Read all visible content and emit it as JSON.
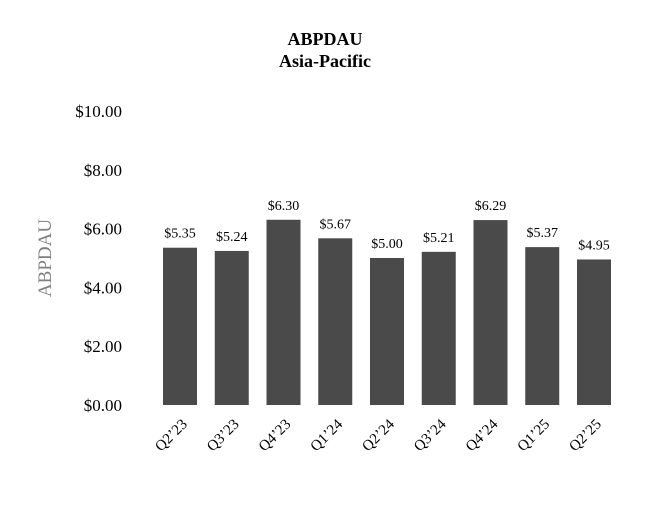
{
  "chart_data": {
    "type": "bar",
    "title": "ABPDAU",
    "subtitle": "Asia-Pacific",
    "xlabel": "",
    "ylabel": "ABPDAU",
    "categories": [
      "Q2’23",
      "Q3’23",
      "Q4’23",
      "Q1’24",
      "Q2’24",
      "Q3’24",
      "Q4’24",
      "Q1’25",
      "Q2’25"
    ],
    "values": [
      5.35,
      5.24,
      6.3,
      5.67,
      5.0,
      5.21,
      6.29,
      5.37,
      4.95
    ],
    "data_labels": [
      "$5.35",
      "$5.24",
      "$6.30",
      "$5.67",
      "$5.00",
      "$5.21",
      "$6.29",
      "$5.37",
      "$4.95"
    ],
    "ylim": [
      0,
      10
    ],
    "yticks": [
      0,
      2,
      4,
      6,
      8,
      10
    ],
    "ytick_labels": [
      "$0.00",
      "$2.00",
      "$4.00",
      "$6.00",
      "$8.00",
      "$10.00"
    ],
    "grid": false,
    "legend": "none",
    "bar_color": "#4a4a4a",
    "ylabel_color": "#7f7f7f"
  }
}
